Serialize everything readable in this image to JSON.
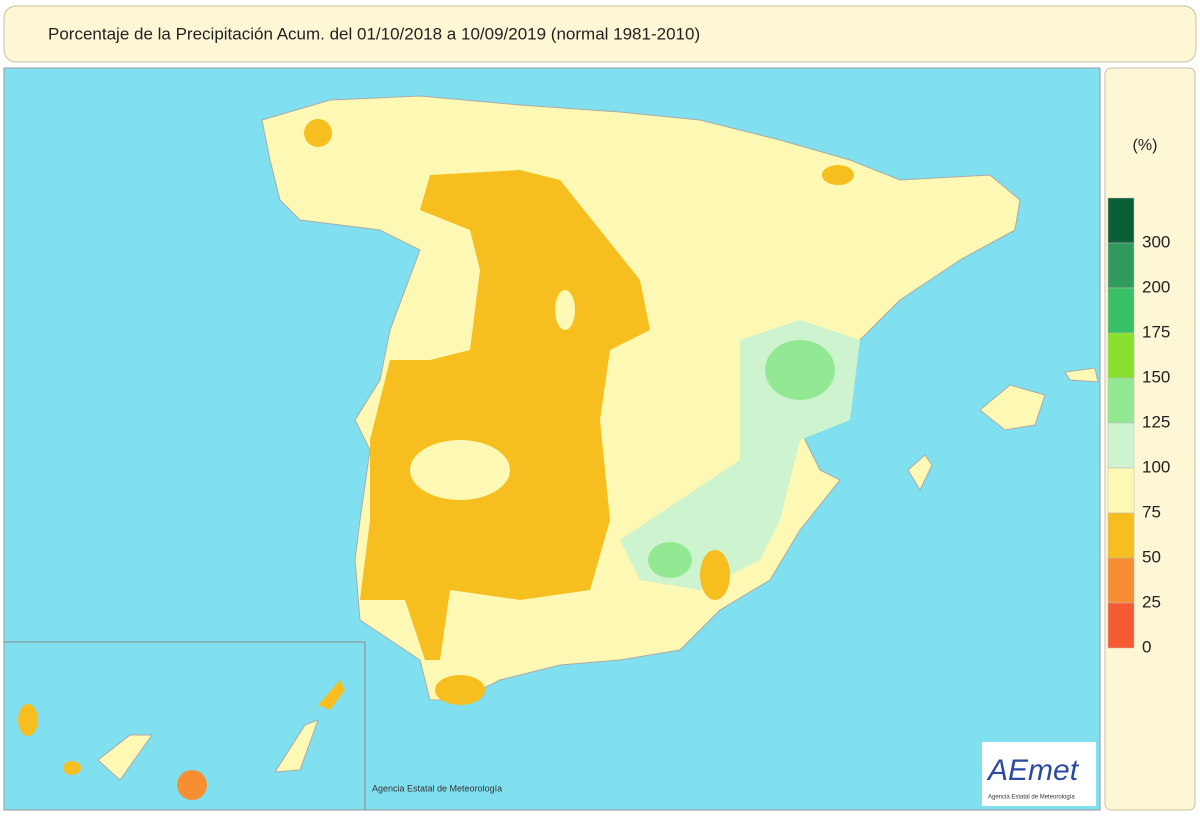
{
  "header": {
    "title": "Porcentaje de la Precipitación Acum. del 01/10/2018 a  10/09/2019  (normal 1981-2010)"
  },
  "legend": {
    "unit": "(%)",
    "colors": [
      "#0b5e35",
      "#2f9a5c",
      "#38c064",
      "#86e02c",
      "#93e893",
      "#cdf3cf",
      "#fdf9b4",
      "#f6bf1f",
      "#f78e32",
      "#f65a32"
    ],
    "labels": [
      300,
      200,
      175,
      150,
      125,
      100,
      75,
      50,
      25,
      0
    ]
  },
  "credit": "Agencia Estatal de Meteorología",
  "logo": {
    "name": "AEmet",
    "subtitle": "Agencia Estatal de Meteorología"
  }
}
